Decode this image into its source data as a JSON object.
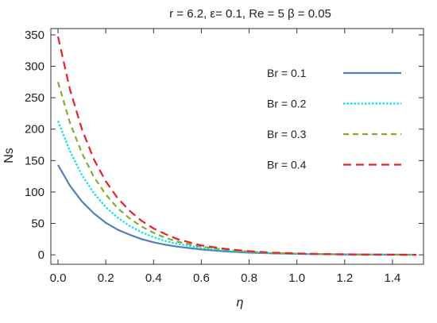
{
  "chart_data": {
    "type": "line",
    "title": "r = 6.2, ε= 0.1, Re = 5 β = 0.05",
    "xlabel": "η",
    "ylabel": "Ns",
    "xlim": [
      -0.03,
      1.53
    ],
    "ylim": [
      -15,
      360
    ],
    "xticks": [
      0.0,
      0.2,
      0.4,
      0.6,
      0.8,
      1.0,
      1.2,
      1.4
    ],
    "xtick_labels": [
      "0.0",
      "0.2",
      "0.4",
      "0.6",
      "0.8",
      "1.0",
      "1.2",
      "1.4"
    ],
    "yticks": [
      0,
      50,
      100,
      150,
      200,
      250,
      300,
      350
    ],
    "ytick_labels": [
      "0",
      "50",
      "100",
      "150",
      "200",
      "250",
      "300",
      "350"
    ],
    "grid": false,
    "legend_position": "top-right",
    "x": [
      0.0,
      0.05,
      0.1,
      0.15,
      0.2,
      0.25,
      0.3,
      0.35,
      0.4,
      0.45,
      0.5,
      0.6,
      0.7,
      0.8,
      0.9,
      1.0,
      1.1,
      1.2,
      1.3,
      1.4,
      1.5
    ],
    "series": [
      {
        "name": "Br = 0.1",
        "color": "#4f7fbf",
        "dash": "solid",
        "values": [
          143,
          110,
          85,
          66,
          51,
          40,
          32,
          25,
          20,
          16,
          13,
          8.5,
          5.5,
          3.5,
          2.3,
          1.5,
          1,
          0.6,
          0.4,
          0.25,
          0.1
        ]
      },
      {
        "name": "Br = 0.2",
        "color": "#00e5ee",
        "dash": "dotted",
        "values": [
          213,
          165,
          127,
          98,
          76,
          59,
          46,
          36,
          28,
          22,
          17.5,
          11,
          7,
          4.5,
          2.8,
          1.8,
          1.1,
          0.7,
          0.4,
          0.25,
          0.1
        ]
      },
      {
        "name": "Br = 0.3",
        "color": "#7fae2e",
        "dash": "dashed",
        "values": [
          275,
          210,
          162,
          124,
          96,
          74,
          58,
          45,
          35,
          27,
          21,
          13,
          8,
          5,
          3,
          2,
          1.2,
          0.8,
          0.5,
          0.3,
          0.1
        ]
      },
      {
        "name": "Br = 0.4",
        "color": "#e8202a",
        "dash": "dashed-long",
        "values": [
          347,
          263,
          200,
          152,
          117,
          90,
          70,
          54,
          42,
          33,
          25,
          15,
          9.5,
          5.8,
          3.5,
          2.2,
          1.3,
          0.8,
          0.5,
          0.3,
          0.1
        ]
      }
    ]
  }
}
